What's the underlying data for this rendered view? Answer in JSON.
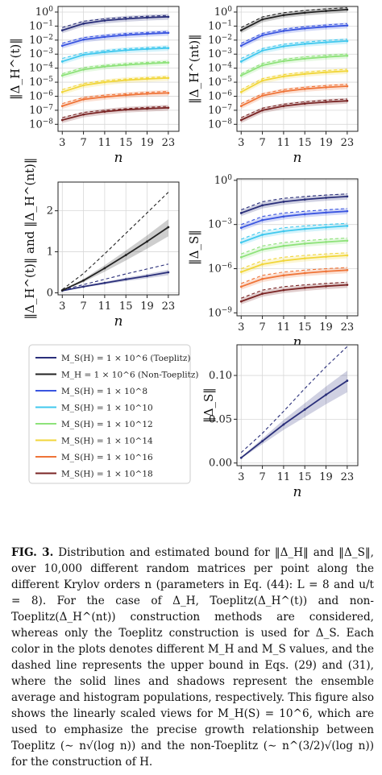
{
  "figure": {
    "x_label": "n",
    "x_ticks": [
      3,
      7,
      11,
      15,
      19,
      23
    ],
    "legend": [
      {
        "label": "M_S(H) = 1 × 10^6 (Toeplitz)",
        "color": "#2a2f7a"
      },
      {
        "label": "M_H = 1 × 10^6 (Non-Toeplitz)",
        "color": "#222222"
      },
      {
        "label": "M_S(H) = 1 × 10^8",
        "color": "#3a55e0"
      },
      {
        "label": "M_S(H) = 1 × 10^10",
        "color": "#40c8ee"
      },
      {
        "label": "M_S(H) = 1 × 10^12",
        "color": "#8ee27a"
      },
      {
        "label": "M_S(H) = 1 × 10^14",
        "color": "#f1d63a"
      },
      {
        "label": "M_S(H) = 1 × 10^16",
        "color": "#ef7438"
      },
      {
        "label": "M_S(H) = 1 × 10^18",
        "color": "#7a2525"
      }
    ],
    "panels": [
      {
        "id": "delta-h-toeplitz",
        "y_label": "‖Δ_H^(t)‖",
        "y_scale": "log",
        "y_ticks": [
          "10^0",
          "10^-1",
          "10^-2",
          "10^-3",
          "10^-4",
          "10^-5",
          "10^-6",
          "10^-7",
          "10^-8"
        ],
        "ylim_log10": [
          -8.5,
          0.4
        ]
      },
      {
        "id": "delta-h-nontoeplitz",
        "y_label": "‖Δ_H^(nt)‖",
        "y_scale": "log",
        "y_ticks": [
          "10^0",
          "10^-1",
          "10^-2",
          "10^-3",
          "10^-4",
          "10^-5",
          "10^-6",
          "10^-7",
          "10^-8"
        ],
        "ylim_log10": [
          -8.5,
          0.4
        ]
      },
      {
        "id": "delta-h-linear",
        "y_label": "‖Δ_H^(t)‖ and ‖Δ_H^(nt)‖",
        "y_scale": "linear",
        "y_ticks": [
          "0",
          "1",
          "2"
        ],
        "ylim": [
          -0.05,
          2.7
        ]
      },
      {
        "id": "delta-s-log",
        "y_label": "‖Δ_S‖",
        "y_scale": "log",
        "y_ticks": [
          "10^0",
          "10^-3",
          "10^-6",
          "10^-9"
        ],
        "ylim_log10": [
          -9.2,
          0.1
        ]
      },
      {
        "id": "delta-s-linear",
        "y_label": "‖Δ_S‖",
        "y_scale": "linear",
        "y_ticks": [
          "0.00",
          "0.05",
          "0.10"
        ],
        "ylim": [
          -0.003,
          0.135
        ]
      }
    ]
  },
  "caption": {
    "label": "FIG. 3.",
    "text": "Distribution and estimated bound for ‖Δ_H‖ and ‖Δ_S‖, over 10,000 different random matrices per point along the different Krylov orders n (parameters in Eq. (44): L = 8 and u/t = 8). For the case of Δ_H, Toeplitz(Δ_H^(t)) and non-Toeplitz(Δ_H^(nt)) construction methods are considered, whereas only the Toeplitz construction is used for Δ_S. Each color in the plots denotes different M_H and M_S values, and the dashed line represents the upper bound in Eqs. (29) and (31), where the solid lines and shadows represent the ensemble average and histogram populations, respectively. This figure also shows the linearly scaled views for M_H(S) = 10^6, which are used to emphasize the precise growth relationship between Toeplitz (∼ n√(log n)) and the non-Toeplitz (∼ n^(3/2)√(log n)) for the construction of H."
  },
  "chart_data": [
    {
      "type": "line",
      "panel": "delta-h-toeplitz",
      "y_scale": "log",
      "x": [
        3,
        7,
        11,
        15,
        19,
        23
      ],
      "series": [
        {
          "name": "M_S(H) = 1 × 10^6 (Toeplitz)",
          "values": [
            0.05,
            0.15,
            0.25,
            0.33,
            0.4,
            0.46
          ],
          "bound": [
            0.08,
            0.22,
            0.33,
            0.42,
            0.5,
            0.57
          ]
        },
        {
          "name": "M_S(H) = 1 × 10^8",
          "values": [
            0.004,
            0.011,
            0.017,
            0.023,
            0.028,
            0.033
          ],
          "bound": [
            0.006,
            0.015,
            0.022,
            0.029,
            0.035,
            0.041
          ]
        },
        {
          "name": "M_S(H) = 1 × 10^10",
          "values": [
            0.0003,
            0.0009,
            0.0014,
            0.0019,
            0.0023,
            0.0027
          ],
          "bound": [
            0.0005,
            0.0012,
            0.0018,
            0.0024,
            0.0029,
            0.0034
          ]
        },
        {
          "name": "M_S(H) = 1 × 10^12",
          "values": [
            3e-05,
            8e-05,
            0.00013,
            0.00017,
            0.00021,
            0.00025
          ],
          "bound": [
            4e-05,
            0.00011,
            0.00016,
            0.00021,
            0.00026,
            0.0003
          ]
        },
        {
          "name": "M_S(H) = 1 × 10^14",
          "values": [
            2e-06,
            6e-06,
            1e-05,
            1.4e-05,
            1.7e-05,
            2e-05
          ],
          "bound": [
            3e-06,
            8e-06,
            1.3e-05,
            1.7e-05,
            2.1e-05,
            2.5e-05
          ]
        },
        {
          "name": "M_S(H) = 1 × 10^16",
          "values": [
            2e-07,
            6e-07,
            9e-07,
            1.2e-06,
            1.5e-06,
            1.7e-06
          ],
          "bound": [
            3e-07,
            8e-07,
            1.2e-06,
            1.5e-06,
            1.9e-06,
            2.2e-06
          ]
        },
        {
          "name": "M_S(H) = 1 × 10^18",
          "values": [
            2e-08,
            5e-08,
            8e-08,
            1.1e-07,
            1.3e-07,
            1.5e-07
          ],
          "bound": [
            3e-08,
            7e-08,
            1e-07,
            1.3e-07,
            1.6e-07,
            1.9e-07
          ]
        }
      ]
    },
    {
      "type": "line",
      "panel": "delta-h-nontoeplitz",
      "y_scale": "log",
      "x": [
        3,
        7,
        11,
        15,
        19,
        23
      ],
      "series": [
        {
          "name": "M_H = 1 × 10^6 (Non-Toeplitz)",
          "values": [
            0.05,
            0.3,
            0.6,
            0.9,
            1.2,
            1.5
          ],
          "bound": [
            0.08,
            0.45,
            0.9,
            1.3,
            1.7,
            2.0
          ]
        },
        {
          "name": "M_S(H) = 1 × 10^8",
          "values": [
            0.004,
            0.022,
            0.045,
            0.068,
            0.09,
            0.11
          ],
          "bound": [
            0.006,
            0.03,
            0.06,
            0.09,
            0.12,
            0.15
          ]
        },
        {
          "name": "M_S(H) = 1 × 10^10",
          "values": [
            0.0003,
            0.0018,
            0.0036,
            0.0054,
            0.007,
            0.0086
          ],
          "bound": [
            0.0005,
            0.0025,
            0.005,
            0.0072,
            0.0094,
            0.0115
          ]
        },
        {
          "name": "M_S(H) = 1 × 10^12",
          "values": [
            3e-05,
            0.00016,
            0.00032,
            0.00048,
            0.00063,
            0.00077
          ],
          "bound": [
            4e-05,
            0.00022,
            0.00043,
            0.00064,
            0.00084,
            0.001
          ]
        },
        {
          "name": "M_S(H) = 1 × 10^14",
          "values": [
            2e-06,
            1.3e-05,
            2.6e-05,
            3.9e-05,
            5.1e-05,
            6.2e-05
          ],
          "bound": [
            3e-06,
            1.8e-05,
            3.5e-05,
            5.2e-05,
            6.8e-05,
            8.3e-05
          ]
        },
        {
          "name": "M_S(H) = 1 × 10^16",
          "values": [
            2e-07,
            1.1e-06,
            2.2e-06,
            3.3e-06,
            4.3e-06,
            5.2e-06
          ],
          "bound": [
            3e-07,
            1.5e-06,
            3e-06,
            4.4e-06,
            5.8e-06,
            7e-06
          ]
        },
        {
          "name": "M_S(H) = 1 × 10^18",
          "values": [
            2e-08,
            1e-07,
            2e-07,
            3e-07,
            3.9e-07,
            4.7e-07
          ],
          "bound": [
            3e-08,
            1.4e-07,
            2.7e-07,
            4e-07,
            5.2e-07,
            6.3e-07
          ]
        }
      ]
    },
    {
      "type": "line",
      "panel": "delta-h-linear",
      "y_scale": "linear",
      "x": [
        3,
        7,
        11,
        15,
        19,
        23
      ],
      "ylim": [
        -0.05,
        2.7
      ],
      "series": [
        {
          "name": "M_S(H) = 1 × 10^6 (Toeplitz)",
          "values": [
            0.05,
            0.15,
            0.24,
            0.33,
            0.41,
            0.5
          ],
          "bound": [
            0.07,
            0.2,
            0.33,
            0.46,
            0.58,
            0.7
          ]
        },
        {
          "name": "M_H = 1 × 10^6 (Non-Toeplitz)",
          "values": [
            0.06,
            0.3,
            0.6,
            0.92,
            1.25,
            1.6
          ],
          "bound": [
            0.08,
            0.47,
            0.95,
            1.45,
            1.95,
            2.45
          ]
        }
      ]
    },
    {
      "type": "line",
      "panel": "delta-s-log",
      "y_scale": "log",
      "x": [
        3,
        7,
        11,
        15,
        19,
        23
      ],
      "series": [
        {
          "name": "M_S(H) = 1 × 10^6 (Toeplitz)",
          "values": [
            0.006,
            0.02,
            0.035,
            0.05,
            0.065,
            0.08
          ],
          "bound": [
            0.01,
            0.035,
            0.06,
            0.08,
            0.1,
            0.12
          ]
        },
        {
          "name": "M_S(H) = 1 × 10^8",
          "values": [
            0.0006,
            0.002,
            0.0035,
            0.005,
            0.0065,
            0.008
          ],
          "bound": [
            0.001,
            0.0035,
            0.006,
            0.008,
            0.01,
            0.012
          ]
        },
        {
          "name": "M_S(H) = 1 × 10^10",
          "values": [
            6e-05,
            0.0002,
            0.00035,
            0.0005,
            0.00065,
            0.0008
          ],
          "bound": [
            0.0001,
            0.00035,
            0.0006,
            0.0008,
            0.001,
            0.0012
          ]
        },
        {
          "name": "M_S(H) = 1 × 10^12",
          "values": [
            6e-06,
            2e-05,
            3.5e-05,
            5e-05,
            6.5e-05,
            8e-05
          ],
          "bound": [
            1e-05,
            3.5e-05,
            6e-05,
            8e-05,
            0.0001,
            0.00012
          ]
        },
        {
          "name": "M_S(H) = 1 × 10^14",
          "values": [
            6e-07,
            2e-06,
            3.5e-06,
            5e-06,
            6.5e-06,
            8e-06
          ],
          "bound": [
            1e-06,
            3.5e-06,
            6e-06,
            8e-06,
            1e-05,
            1.2e-05
          ]
        },
        {
          "name": "M_S(H) = 1 × 10^16",
          "values": [
            6e-08,
            2e-07,
            3.5e-07,
            5e-07,
            6.5e-07,
            8e-07
          ],
          "bound": [
            1e-07,
            3.5e-07,
            6e-07,
            8e-07,
            1e-06,
            1.2e-06
          ]
        },
        {
          "name": "M_S(H) = 1 × 10^18",
          "values": [
            6e-09,
            2e-08,
            3.5e-08,
            5e-08,
            6.5e-08,
            8e-08
          ],
          "bound": [
            1e-08,
            3.5e-08,
            6e-08,
            8e-08,
            1e-07,
            1.2e-07
          ]
        }
      ]
    },
    {
      "type": "line",
      "panel": "delta-s-linear",
      "y_scale": "linear",
      "x": [
        3,
        7,
        11,
        15,
        19,
        23
      ],
      "ylim": [
        -0.003,
        0.135
      ],
      "series": [
        {
          "name": "M_S(H) = 1 × 10^6 (Toeplitz)",
          "values": [
            0.006,
            0.025,
            0.044,
            0.061,
            0.078,
            0.094
          ],
          "bound": [
            0.012,
            0.034,
            0.059,
            0.085,
            0.11,
            0.133
          ]
        }
      ]
    }
  ]
}
